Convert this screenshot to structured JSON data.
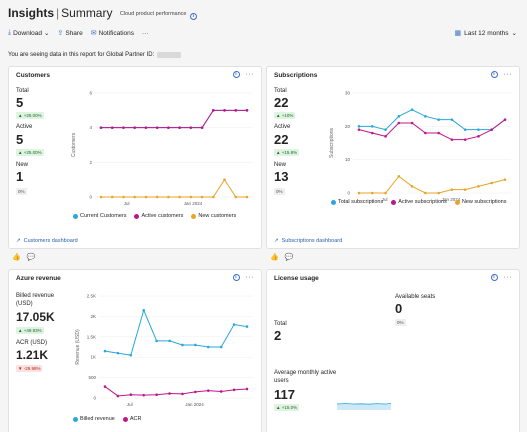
{
  "header": {
    "title": "Insights",
    "subtitle": "Summary",
    "scope": "Cloud product performance"
  },
  "toolbar": {
    "download": "Download",
    "share": "Share",
    "notifications": "Notifications",
    "more": "···"
  },
  "date_range": "Last 12 months",
  "notice": "You are seeing data in this report for Global Partner ID:",
  "customers": {
    "title": "Customers",
    "total_label": "Total",
    "total_value": "5",
    "total_change": "▲ +25.00%",
    "active_label": "Active",
    "active_value": "5",
    "active_change": "▲ +25.00%",
    "new_label": "New",
    "new_value": "1",
    "new_change": "0%",
    "footer": "Customers dashboard",
    "chart_data": {
      "type": "line",
      "ylabel": "Customers",
      "ylim": [
        0,
        6
      ],
      "yticks": [
        "0",
        "2",
        "4",
        "6"
      ],
      "xticks": [
        "Jul",
        "Jan 2024"
      ],
      "series": [
        {
          "name": "Current Customers",
          "color": "#2aa7dd",
          "values": [
            4,
            4,
            4,
            4,
            4,
            4,
            4,
            4,
            4,
            4,
            5,
            5,
            5,
            5
          ]
        },
        {
          "name": "Active customers",
          "color": "#c0168c",
          "values": [
            4,
            4,
            4,
            4,
            4,
            4,
            4,
            4,
            4,
            4,
            5,
            5,
            5,
            5
          ]
        },
        {
          "name": "New customers",
          "color": "#e8a628",
          "values": [
            0,
            0,
            0,
            0,
            0,
            0,
            0,
            0,
            0,
            0,
            0,
            1,
            0,
            0
          ]
        }
      ]
    }
  },
  "subscriptions": {
    "title": "Subscriptions",
    "total_label": "Total",
    "total_value": "22",
    "total_change": "▲ +10%",
    "active_label": "Active",
    "active_value": "22",
    "active_change": "▲ +15.8%",
    "new_label": "New",
    "new_value": "13",
    "new_change": "0%",
    "footer": "Subscriptions dashboard",
    "chart_data": {
      "type": "line",
      "ylabel": "Subscriptions",
      "ylim": [
        0,
        30
      ],
      "yticks": [
        "0",
        "10",
        "20",
        "30"
      ],
      "xticks": [
        "Jul",
        "Jan 2024"
      ],
      "series": [
        {
          "name": "Total subscriptions",
          "color": "#2aa7dd",
          "values": [
            20,
            20,
            19,
            23,
            25,
            23,
            22,
            22,
            19,
            19,
            19,
            22
          ]
        },
        {
          "name": "Active subscriptions",
          "color": "#c0168c",
          "values": [
            19,
            18,
            17,
            21,
            21,
            18,
            18,
            16,
            16,
            17,
            19,
            22
          ]
        },
        {
          "name": "New subscriptions",
          "color": "#e8a628",
          "values": [
            0,
            0,
            0,
            5,
            2,
            0,
            0,
            1,
            1,
            2,
            3,
            4
          ]
        }
      ]
    }
  },
  "azure": {
    "title": "Azure revenue",
    "billed_label": "Billed revenue (USD)",
    "billed_value": "17.05K",
    "billed_change": "▲ +49.93%",
    "acr_label": "ACR (USD)",
    "acr_value": "1.21K",
    "acr_change": "▼ -29.98%",
    "chart_data": {
      "type": "line",
      "ylabel": "Revenue (USD)",
      "ylim": [
        0,
        2500
      ],
      "yticks": [
        "0",
        "500",
        "1K",
        "1.5K",
        "2K",
        "2.5K"
      ],
      "xticks": [
        "Jul",
        "Jan 2024"
      ],
      "series": [
        {
          "name": "Billed revenue",
          "color": "#2aa7dd",
          "values": [
            1150,
            1100,
            1050,
            2150,
            1400,
            1400,
            1300,
            1300,
            1250,
            1250,
            1800,
            1750
          ]
        },
        {
          "name": "ACR",
          "color": "#c0168c",
          "values": [
            280,
            50,
            80,
            70,
            80,
            110,
            100,
            150,
            180,
            160,
            200,
            220
          ]
        }
      ]
    }
  },
  "license": {
    "title": "License usage",
    "total_label": "Total",
    "total_value": "2",
    "seats_label": "Available seats",
    "seats_value": "0",
    "seats_change": "0%",
    "mau_label": "Average monthly active users",
    "mau_value": "117",
    "mau_change": "▲ +15.0%"
  }
}
